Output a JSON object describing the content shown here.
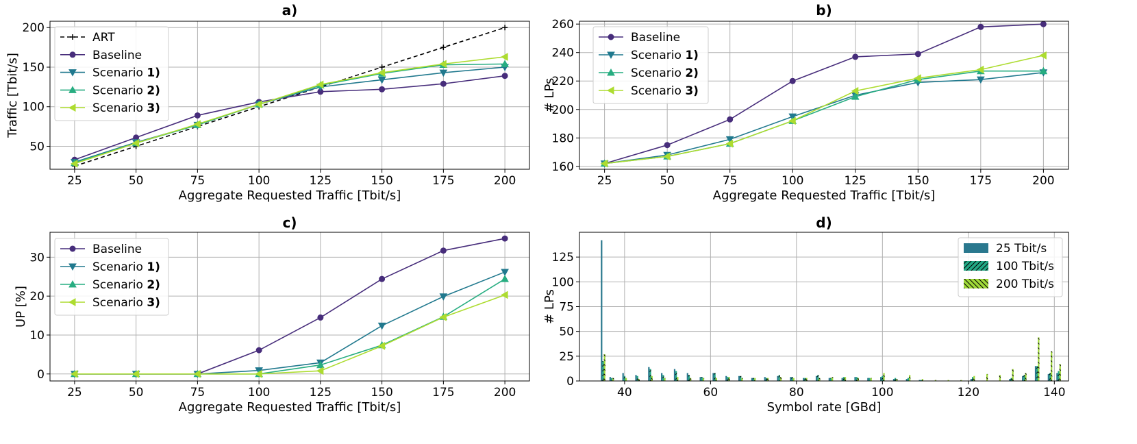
{
  "chart_data": [
    {
      "type": "line",
      "title": "a)",
      "xlabel": "Aggregate Requested Traffic [Tbit/s]",
      "ylabel": "Traffic [Tbit/s]",
      "x": [
        25,
        50,
        75,
        100,
        125,
        150,
        175,
        200
      ],
      "xlim": [
        15,
        210
      ],
      "ylim": [
        21,
        208
      ],
      "yticks": [
        50,
        100,
        150,
        200
      ],
      "xticks": [
        25,
        50,
        75,
        100,
        125,
        150,
        175,
        200
      ],
      "legend_loc": "upper-left",
      "series": [
        {
          "name": "ART",
          "label_plain": "ART",
          "label_bold": "",
          "color": "#000000",
          "marker": "plus",
          "dashed": true,
          "values": [
            25,
            50,
            75,
            100,
            125,
            150,
            175,
            200
          ]
        },
        {
          "name": "Baseline",
          "label_plain": "Baseline",
          "label_bold": "",
          "color": "#472d7b",
          "marker": "circle",
          "values": [
            33,
            61,
            89,
            106,
            119,
            122,
            129,
            139
          ]
        },
        {
          "name": "Scenario 1)",
          "label_plain": "Scenario ",
          "label_bold": "1)",
          "color": "#21798e",
          "marker": "tri-down",
          "values": [
            30,
            55,
            77,
            103,
            125,
            134,
            143,
            150
          ]
        },
        {
          "name": "Scenario 2)",
          "label_plain": "Scenario ",
          "label_bold": "2)",
          "color": "#27ad81",
          "marker": "tri-up",
          "values": [
            29,
            54,
            77,
            103,
            127,
            142,
            153,
            154
          ]
        },
        {
          "name": "Scenario 3)",
          "label_plain": "Scenario ",
          "label_bold": "3)",
          "color": "#addc30",
          "marker": "tri-left",
          "values": [
            28,
            54,
            78,
            103,
            128,
            143,
            154,
            163
          ]
        }
      ]
    },
    {
      "type": "line",
      "title": "b)",
      "xlabel": "Aggregate Requested Traffic [Tbit/s]",
      "ylabel": "# LPs",
      "x": [
        25,
        50,
        75,
        100,
        125,
        150,
        175,
        200
      ],
      "xlim": [
        15,
        210
      ],
      "ylim": [
        158,
        262
      ],
      "yticks": [
        160,
        180,
        200,
        220,
        240,
        260
      ],
      "xticks": [
        25,
        50,
        75,
        100,
        125,
        150,
        175,
        200
      ],
      "legend_loc": "upper-left",
      "series": [
        {
          "name": "Baseline",
          "label_plain": "Baseline",
          "label_bold": "",
          "color": "#472d7b",
          "marker": "circle",
          "values": [
            162,
            175,
            193,
            220,
            237,
            239,
            258,
            260
          ]
        },
        {
          "name": "Scenario 1)",
          "label_plain": "Scenario ",
          "label_bold": "1)",
          "color": "#21798e",
          "marker": "tri-down",
          "values": [
            162,
            168,
            179,
            195,
            210,
            219,
            221,
            226
          ]
        },
        {
          "name": "Scenario 2)",
          "label_plain": "Scenario ",
          "label_bold": "2)",
          "color": "#27ad81",
          "marker": "tri-up",
          "values": [
            162,
            167,
            176,
            192,
            209,
            221,
            227,
            227
          ]
        },
        {
          "name": "Scenario 3)",
          "label_plain": "Scenario ",
          "label_bold": "3)",
          "color": "#addc30",
          "marker": "tri-left",
          "values": [
            162,
            167,
            176,
            192,
            213,
            222,
            228,
            238
          ]
        }
      ]
    },
    {
      "type": "line",
      "title": "c)",
      "xlabel": "Aggregate Requested Traffic [Tbit/s]",
      "ylabel": "UP [%]",
      "x": [
        25,
        50,
        75,
        100,
        125,
        150,
        175,
        200
      ],
      "xlim": [
        15,
        210
      ],
      "ylim": [
        -1.8,
        36.4
      ],
      "yticks": [
        0,
        10,
        20,
        30
      ],
      "xticks": [
        25,
        50,
        75,
        100,
        125,
        150,
        175,
        200
      ],
      "legend_loc": "upper-left",
      "series": [
        {
          "name": "Baseline",
          "label_plain": "Baseline",
          "label_bold": "",
          "color": "#472d7b",
          "marker": "circle",
          "values": [
            0,
            0,
            0,
            6.1,
            14.5,
            24.4,
            31.7,
            34.8
          ]
        },
        {
          "name": "Scenario 1)",
          "label_plain": "Scenario ",
          "label_bold": "1)",
          "color": "#21798e",
          "marker": "tri-down",
          "values": [
            0,
            0,
            0,
            0.9,
            2.9,
            12.4,
            19.9,
            26.2
          ]
        },
        {
          "name": "Scenario 2)",
          "label_plain": "Scenario ",
          "label_bold": "2)",
          "color": "#27ad81",
          "marker": "tri-up",
          "values": [
            0,
            0,
            0,
            0,
            2.3,
            7.4,
            14.7,
            24.4
          ]
        },
        {
          "name": "Scenario 3)",
          "label_plain": "Scenario ",
          "label_bold": "3)",
          "color": "#addc30",
          "marker": "tri-left",
          "values": [
            0,
            0,
            0,
            0,
            0.8,
            7.2,
            14.6,
            20.3
          ]
        }
      ]
    },
    {
      "type": "bar",
      "title": "d)",
      "xlabel": "Symbol rate [GBd]",
      "ylabel": "# LPs",
      "xlim": [
        29.5,
        143.3
      ],
      "ylim": [
        0,
        150
      ],
      "xticks": [
        40,
        60,
        80,
        100,
        120,
        140
      ],
      "yticks": [
        0,
        25,
        50,
        75,
        100,
        125
      ],
      "legend_loc": "upper-right",
      "categories": [
        35,
        37,
        40,
        43,
        46,
        49,
        52,
        55,
        58,
        61,
        64,
        67,
        70,
        73,
        76,
        79,
        82,
        85,
        88,
        91,
        94,
        97,
        100,
        103,
        106,
        109,
        112,
        115,
        118,
        121,
        124,
        127,
        130,
        133,
        136,
        139,
        141
      ],
      "series": [
        {
          "name": "25 Tbit/s",
          "color": "#2a788e",
          "hatch": "none",
          "values": [
            142,
            4,
            8,
            6,
            14,
            8,
            12,
            8,
            4,
            8,
            5,
            5,
            3,
            4,
            5,
            4,
            3,
            5,
            3,
            3,
            4,
            3,
            4,
            2,
            2,
            1,
            0,
            0,
            0,
            2,
            0,
            0,
            2,
            5,
            15,
            7,
            8
          ]
        },
        {
          "name": "100 Tbit/s",
          "color": "#22a884",
          "hatch": "slash",
          "values": [
            20,
            3,
            5,
            5,
            12,
            6,
            10,
            6,
            4,
            8,
            4,
            5,
            3,
            3,
            6,
            4,
            3,
            6,
            3,
            4,
            4,
            3,
            5,
            3,
            3,
            1,
            0,
            0,
            0,
            4,
            0,
            0,
            3,
            6,
            15,
            8,
            10
          ]
        },
        {
          "name": "200 Tbit/s",
          "color": "#a0da39",
          "hatch": "backslash",
          "values": [
            27,
            3,
            3,
            2,
            5,
            3,
            4,
            3,
            3,
            3,
            4,
            3,
            3,
            3,
            4,
            3,
            3,
            3,
            4,
            4,
            3,
            3,
            8,
            2,
            6,
            2,
            1,
            1,
            1,
            5,
            7,
            6,
            12,
            8,
            44,
            30,
            17
          ]
        }
      ]
    }
  ]
}
